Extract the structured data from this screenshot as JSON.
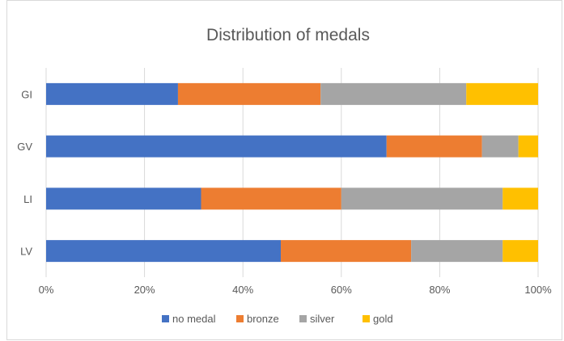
{
  "chart_data": {
    "type": "bar",
    "orientation": "horizontal",
    "stacked": "percent",
    "title": "Distribution of medals",
    "categories": [
      "GI",
      "GV",
      "LI",
      "LV"
    ],
    "series": [
      {
        "name": "no medal",
        "color": "#4472c4",
        "values": [
          26.8,
          69.2,
          31.5,
          47.7
        ]
      },
      {
        "name": "bronze",
        "color": "#ed7d31",
        "values": [
          29.0,
          19.4,
          28.5,
          26.5
        ]
      },
      {
        "name": "silver",
        "color": "#a5a5a5",
        "values": [
          29.6,
          7.4,
          32.8,
          18.6
        ]
      },
      {
        "name": "gold",
        "color": "#ffc000",
        "values": [
          14.6,
          4.0,
          7.2,
          7.2
        ]
      }
    ],
    "x_ticks": [
      "0%",
      "20%",
      "40%",
      "60%",
      "80%",
      "100%"
    ],
    "xlim": [
      0,
      100
    ],
    "grid": true,
    "legend_position": "bottom"
  }
}
